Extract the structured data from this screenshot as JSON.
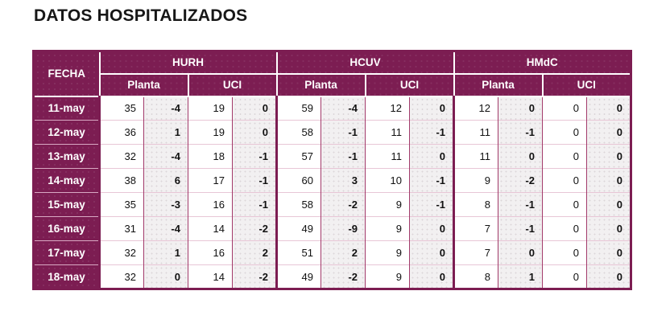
{
  "title": "DATOS HOSPITALIZADOS",
  "colors": {
    "header_background": "#7C1D52",
    "header_text": "#FFFFFF",
    "value_cell_background": "#FFFFFF",
    "delta_cell_background": "#F2F0F1",
    "thin_row_border": "#E8C6D6",
    "thin_column_border": "#A23A6A",
    "thick_border": "#7C1D52",
    "number_text": "#111111"
  },
  "table": {
    "date_header": "FECHA",
    "groups": [
      {
        "name": "HURH",
        "sub": [
          "Planta",
          "UCI"
        ]
      },
      {
        "name": "HCUV",
        "sub": [
          "Planta",
          "UCI"
        ]
      },
      {
        "name": "HMdC",
        "sub": [
          "Planta",
          "UCI"
        ]
      }
    ]
  },
  "chart_data": {
    "type": "table",
    "title": "DATOS HOSPITALIZADOS",
    "columns": [
      "FECHA",
      "HURH Planta",
      "HURH Planta delta",
      "HURH UCI",
      "HURH UCI delta",
      "HCUV Planta",
      "HCUV Planta delta",
      "HCUV UCI",
      "HCUV UCI delta",
      "HMdC Planta",
      "HMdC Planta delta",
      "HMdC UCI",
      "HMdC UCI delta"
    ],
    "rows": [
      {
        "date": "11-may",
        "values": [
          35,
          -4,
          19,
          0,
          59,
          -4,
          12,
          0,
          12,
          0,
          0,
          0
        ]
      },
      {
        "date": "12-may",
        "values": [
          36,
          1,
          19,
          0,
          58,
          -1,
          11,
          -1,
          11,
          -1,
          0,
          0
        ]
      },
      {
        "date": "13-may",
        "values": [
          32,
          -4,
          18,
          -1,
          57,
          -1,
          11,
          0,
          11,
          0,
          0,
          0
        ]
      },
      {
        "date": "14-may",
        "values": [
          38,
          6,
          17,
          -1,
          60,
          3,
          10,
          -1,
          9,
          -2,
          0,
          0
        ]
      },
      {
        "date": "15-may",
        "values": [
          35,
          -3,
          16,
          -1,
          58,
          -2,
          9,
          -1,
          8,
          -1,
          0,
          0
        ]
      },
      {
        "date": "16-may",
        "values": [
          31,
          -4,
          14,
          -2,
          49,
          -9,
          9,
          0,
          7,
          -1,
          0,
          0
        ]
      },
      {
        "date": "17-may",
        "values": [
          32,
          1,
          16,
          2,
          51,
          2,
          9,
          0,
          7,
          0,
          0,
          0
        ]
      },
      {
        "date": "18-may",
        "values": [
          32,
          0,
          14,
          -2,
          49,
          -2,
          9,
          0,
          8,
          1,
          0,
          0
        ]
      }
    ]
  }
}
